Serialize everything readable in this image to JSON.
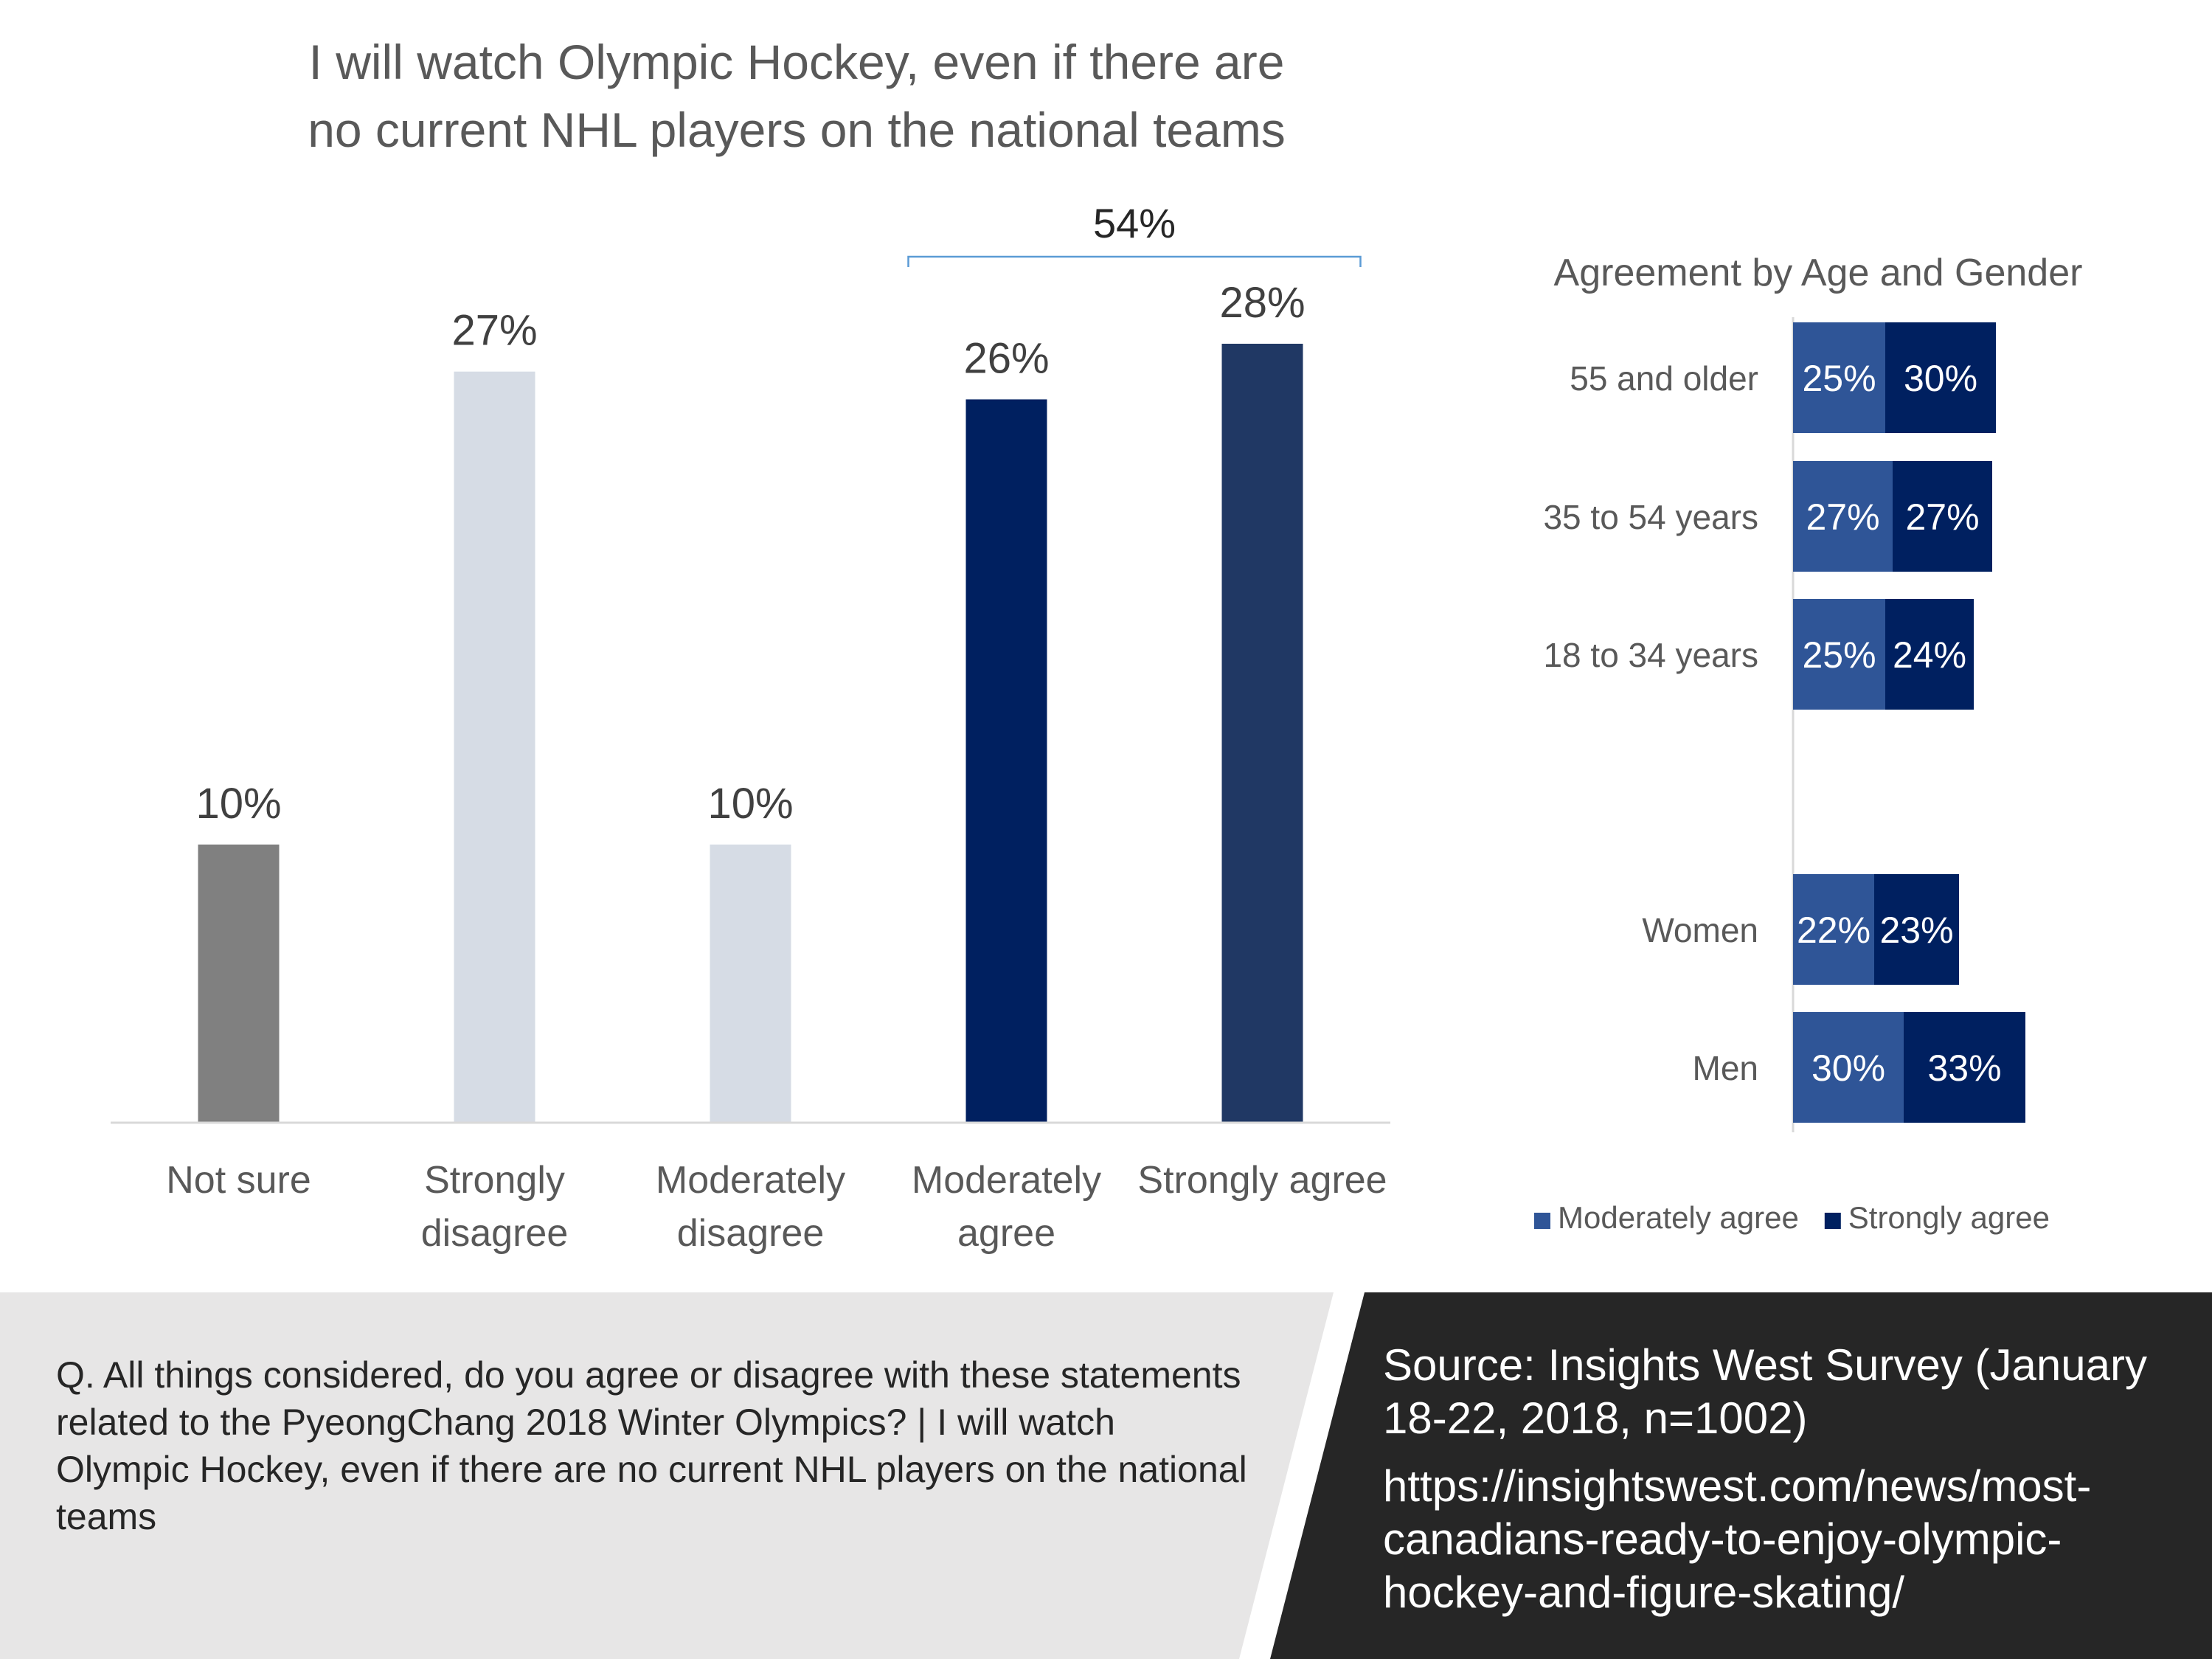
{
  "colors": {
    "not_sure": "#808080",
    "disagree": "#D6DCE5",
    "moderately_agree_main": "#002060",
    "strongly_agree_main": "#203864",
    "moderately_agree_breakdown": "#2F5597",
    "strongly_agree_breakdown": "#002060",
    "footer_left_bg": "#E7E6E6",
    "footer_right_bg": "#262626"
  },
  "title_lines": [
    "I will watch Olympic Hockey, even if there are",
    "no current NHL players on the national teams"
  ],
  "chart_data": [
    {
      "type": "bar",
      "title": "I will watch Olympic Hockey, even if there are no current NHL players on the national teams",
      "categories": [
        [
          "Not sure"
        ],
        [
          "Strongly",
          "disagree"
        ],
        [
          "Moderately",
          "disagree"
        ],
        [
          "Moderately",
          "agree"
        ],
        [
          "Strongly agree"
        ]
      ],
      "values": [
        10,
        27,
        10,
        26,
        28
      ],
      "data_labels": [
        "10%",
        "27%",
        "10%",
        "26%",
        "28%"
      ],
      "ylim": [
        0,
        28
      ],
      "annotation": {
        "label": "54%",
        "spans": [
          "Moderately agree",
          "Strongly agree"
        ]
      },
      "grid": false
    },
    {
      "type": "bar",
      "orientation": "horizontal",
      "stacked": true,
      "title": "Agreement by Age and Gender",
      "categories": [
        "55 and older",
        "35 to 54 years",
        "18 to 34 years",
        "Women",
        "Men"
      ],
      "series": [
        {
          "name": "Moderately agree",
          "values": [
            25,
            27,
            25,
            22,
            30
          ],
          "labels": [
            "25%",
            "27%",
            "25%",
            "22%",
            "30%"
          ]
        },
        {
          "name": "Strongly agree",
          "values": [
            30,
            27,
            24,
            23,
            33
          ],
          "labels": [
            "30%",
            "27%",
            "24%",
            "23%",
            "33%"
          ]
        }
      ],
      "legend": "bottom"
    }
  ],
  "footer": {
    "question": "Q.  All things considered, do you agree or disagree with these statements related to the PyeongChang 2018 Winter Olympics? | I will watch Olympic Hockey, even if there are no current NHL players on the national teams",
    "source": "Source: Insights West Survey (January 18-22, 2018, n=1002)",
    "url": "https://insightswest.com/news/most-canadians-ready-to-enjoy-olympic-hockey-and-figure-skating/"
  }
}
